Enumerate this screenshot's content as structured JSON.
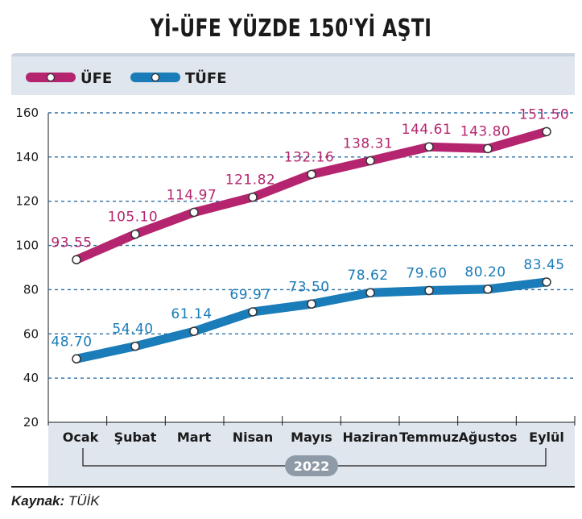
{
  "chart_data": {
    "type": "line",
    "title": "Yİ-ÜFE YÜZDE 150'Yİ AŞTI",
    "categories": [
      "Ocak",
      "Şubat",
      "Mart",
      "Nisan",
      "Mayıs",
      "Haziran",
      "Temmuz",
      "Ağustos",
      "Eylül"
    ],
    "year_label": "2022",
    "series": [
      {
        "name": "ÜFE",
        "color": "#b5256f",
        "values": [
          93.55,
          105.1,
          114.97,
          121.82,
          132.16,
          138.31,
          144.61,
          143.8,
          151.5
        ]
      },
      {
        "name": "TÜFE",
        "color": "#1a7cb8",
        "values": [
          48.7,
          54.4,
          61.14,
          69.97,
          73.5,
          78.62,
          79.6,
          80.2,
          83.45
        ]
      }
    ],
    "ylim": [
      20,
      160
    ],
    "yticks": [
      20,
      40,
      60,
      80,
      100,
      120,
      140,
      160
    ],
    "grid": true,
    "legend_position": "top-left"
  },
  "source": {
    "label": "Kaynak:",
    "value": "TÜİK"
  },
  "colors": {
    "panel": "#dfe6ee",
    "grid": "#2a6fa6"
  }
}
